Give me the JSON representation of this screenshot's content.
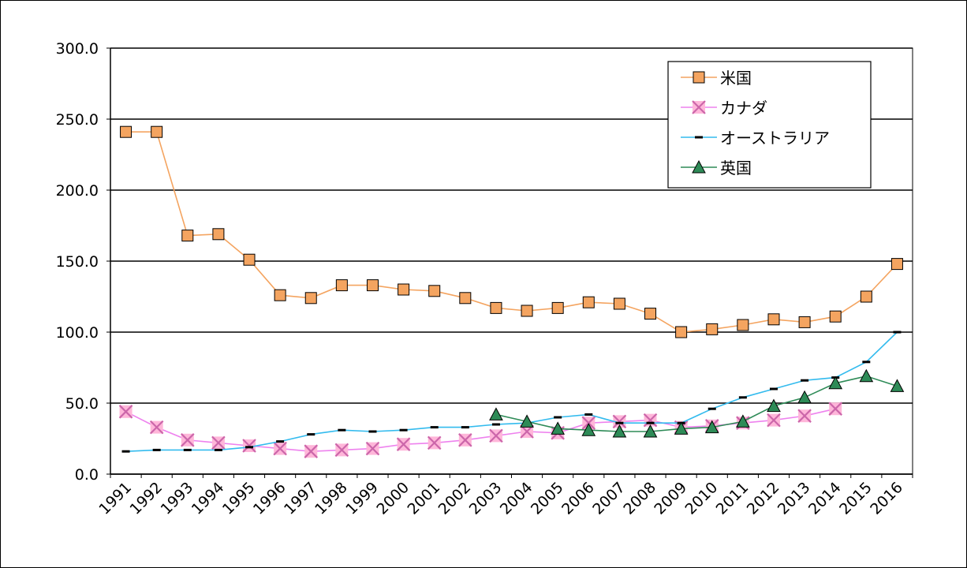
{
  "chart_data": {
    "type": "line",
    "title": "",
    "xlabel": "",
    "ylabel": "",
    "ylim": [
      0,
      300
    ],
    "yticks": [
      "0.0",
      "50.0",
      "100.0",
      "150.0",
      "200.0",
      "250.0",
      "300.0"
    ],
    "grid": "horizontal",
    "legend_position": "top-right",
    "categories": [
      "1991",
      "1992",
      "1993",
      "1994",
      "1995",
      "1996",
      "1997",
      "1998",
      "1999",
      "2000",
      "2001",
      "2002",
      "2003",
      "2004",
      "2005",
      "2006",
      "2007",
      "2008",
      "2009",
      "2010",
      "2011",
      "2012",
      "2013",
      "2014",
      "2015",
      "2016"
    ],
    "series": [
      {
        "name": "米国",
        "color": "#f4a460",
        "marker": "square",
        "values": [
          241,
          241,
          168,
          169,
          151,
          126,
          124,
          133,
          133,
          130,
          129,
          124,
          117,
          115,
          117,
          121,
          120,
          113,
          100,
          102,
          105,
          109,
          107,
          111,
          125,
          148
        ]
      },
      {
        "name": "カナダ",
        "color": "#ee82ee",
        "marker": "x",
        "values": [
          44,
          33,
          24,
          22,
          20,
          18,
          16,
          17,
          18,
          21,
          22,
          24,
          27,
          30,
          29,
          36,
          37,
          38,
          33,
          34,
          36,
          38,
          41,
          46,
          null,
          null
        ]
      },
      {
        "name": "オーストラリア",
        "color": "#33bbee",
        "marker": "dash",
        "values": [
          16,
          17,
          17,
          17,
          19,
          23,
          28,
          31,
          30,
          31,
          33,
          33,
          35,
          36,
          40,
          42,
          36,
          36,
          36,
          46,
          54,
          60,
          66,
          68,
          79,
          100
        ]
      },
      {
        "name": "英国",
        "color": "#2e8b57",
        "marker": "triangle",
        "values": [
          null,
          null,
          null,
          null,
          null,
          null,
          null,
          null,
          null,
          null,
          null,
          null,
          42,
          37,
          32,
          31,
          30,
          30,
          32,
          33,
          37,
          48,
          54,
          64,
          69,
          62
        ]
      }
    ]
  }
}
